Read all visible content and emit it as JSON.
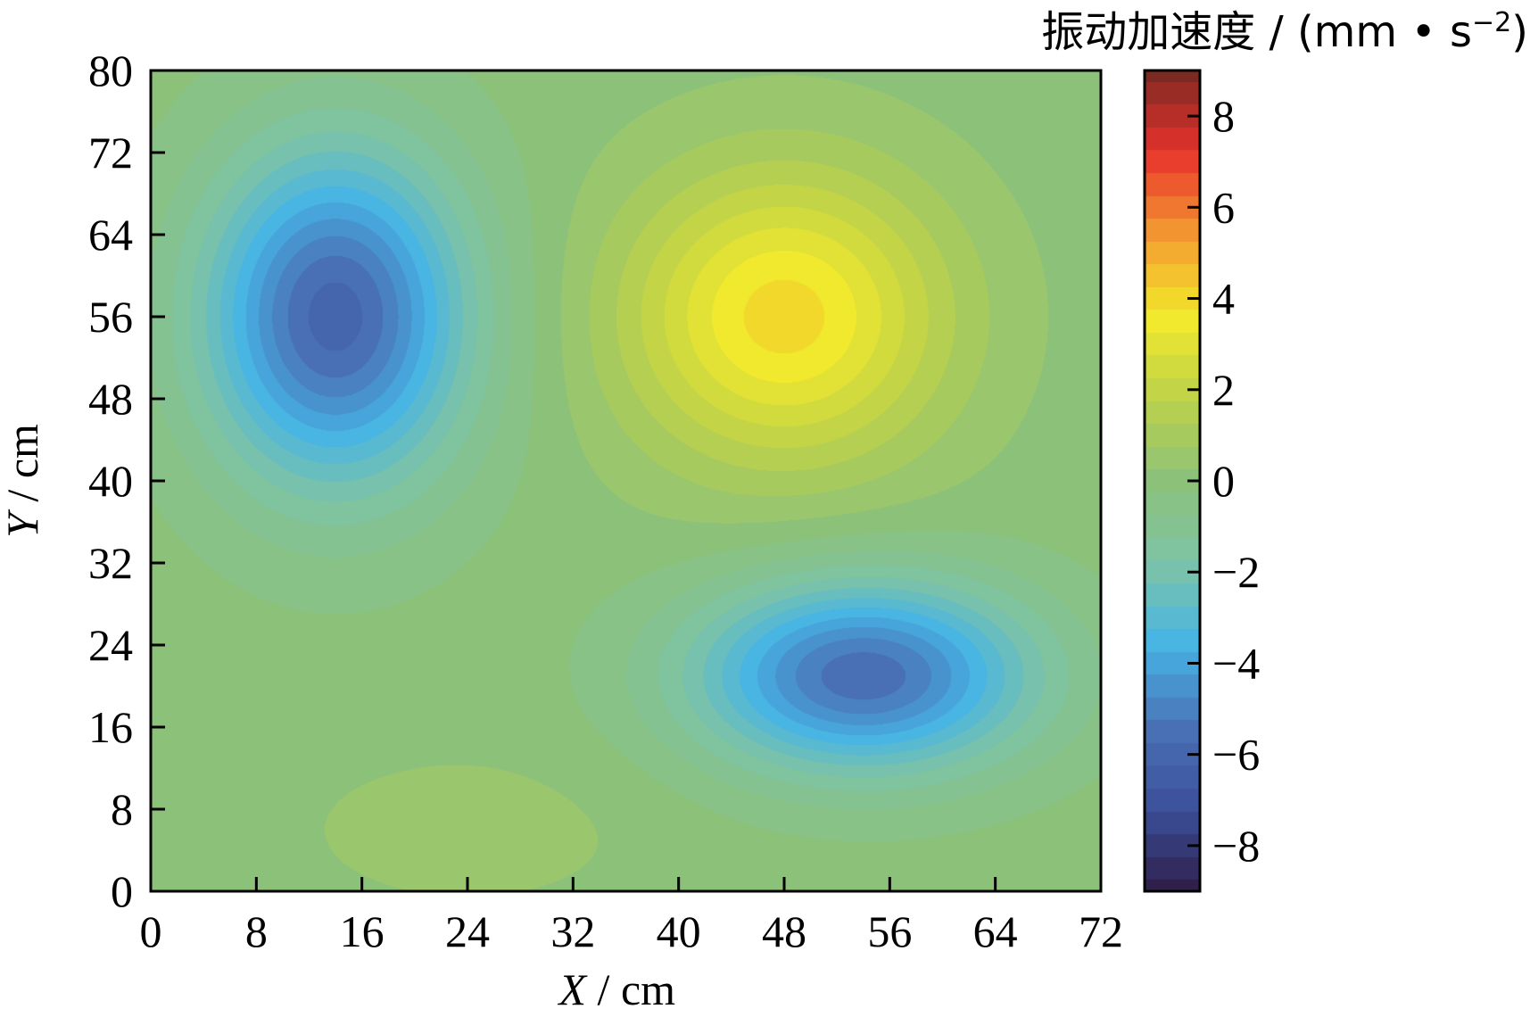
{
  "chart_data": {
    "type": "heatmap",
    "plot_kind": "filled-contour",
    "xlabel_var": "X",
    "xlabel_unit": " / cm",
    "ylabel_var": "Y",
    "ylabel_unit": " / cm",
    "xlim": [
      0,
      72
    ],
    "ylim": [
      0,
      80
    ],
    "x_ticks": [
      0,
      8,
      16,
      24,
      32,
      40,
      48,
      56,
      64,
      72
    ],
    "y_ticks": [
      0,
      8,
      16,
      24,
      32,
      40,
      48,
      56,
      64,
      72,
      80
    ],
    "colorbar": {
      "title_main": "振动加速度 / (mm • s",
      "title_sup": "−2",
      "title_close": ")",
      "range": [
        -9,
        9
      ],
      "ticks": [
        -8,
        -6,
        -4,
        -2,
        0,
        2,
        4,
        6,
        8
      ],
      "tick_labels": [
        "−8",
        "−6",
        "−4",
        "−2",
        "0",
        "2",
        "4",
        "6",
        "8"
      ],
      "colormap": [
        "#2e1f4b",
        "#3b4f9a",
        "#4a72b6",
        "#46b4e6",
        "#7dc3a6",
        "#8cc17a",
        "#bdd24a",
        "#f3ea2b",
        "#f39a31",
        "#e8312c",
        "#7a2a22"
      ]
    },
    "features": [
      {
        "kind": "trough",
        "x": 14,
        "y": 56,
        "peak_value": -6.0
      },
      {
        "kind": "peak",
        "x": 48,
        "y": 56,
        "peak_value": 4.0
      },
      {
        "kind": "trough",
        "x": 54,
        "y": 21,
        "peak_value": -5.6
      }
    ],
    "background_value": 0,
    "grid": false,
    "grid_info": "contour levels step 0.5"
  }
}
